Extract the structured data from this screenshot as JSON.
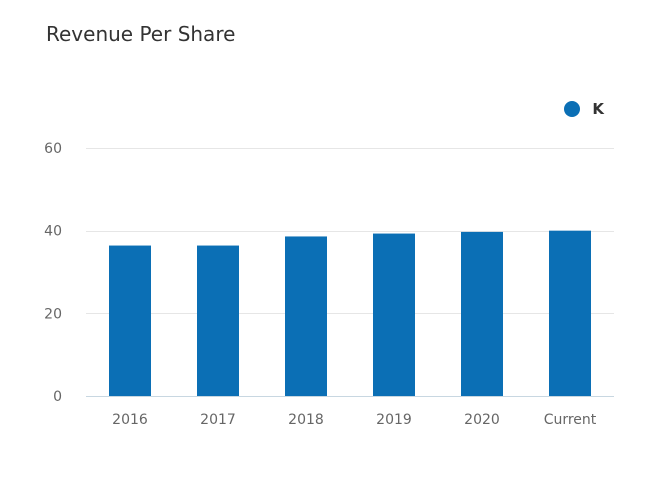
{
  "chart_data": {
    "type": "bar",
    "title": "Revenue Per Share",
    "categories": [
      "2016",
      "2017",
      "2018",
      "2019",
      "2020",
      "Current"
    ],
    "series": [
      {
        "name": "K",
        "color": "#0b6fb5",
        "values": [
          36.4,
          36.4,
          38.6,
          39.3,
          39.7,
          40.0
        ]
      }
    ],
    "xlabel": "",
    "ylabel": "",
    "ylim": [
      0,
      60
    ],
    "yticks": [
      0,
      20,
      40,
      60
    ],
    "grid": true,
    "legend_position": "top-right"
  }
}
